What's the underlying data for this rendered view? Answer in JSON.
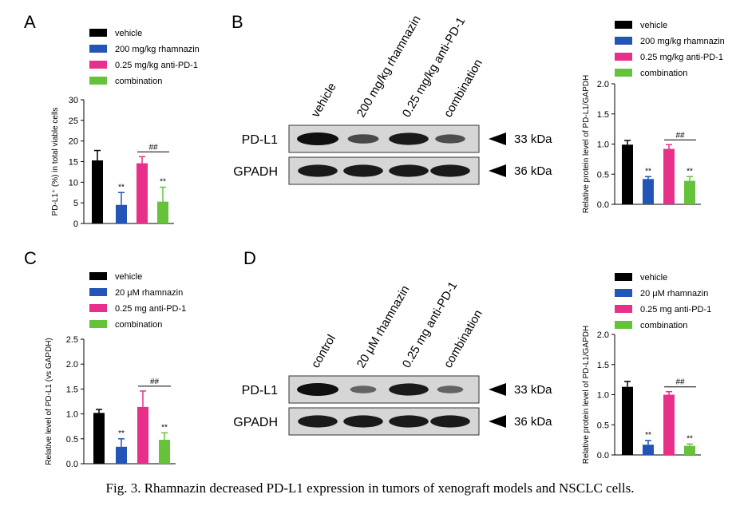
{
  "figure": {
    "caption": "Fig. 3.  Rhamnazin decreased PD-L1 expression in tumors of xenograft models and NSCLC cells."
  },
  "colors": {
    "vehicle": "#000000",
    "rhamnazin": "#2255b5",
    "antipd1": "#e8308a",
    "combination": "#66c23a"
  },
  "blots": [
    {
      "label": "B",
      "lanes": [
        "vehicle",
        "200 mg/kg rhamnazin",
        "0.25 mg/kg anti-PD-1",
        "combination"
      ],
      "rows": [
        {
          "name": "PD-L1",
          "size": "33 kDa",
          "intensities": [
            1.0,
            0.45,
            0.9,
            0.4
          ]
        },
        {
          "name": "GPADH",
          "size": "36 kDa",
          "intensities": [
            0.9,
            0.9,
            0.9,
            0.9
          ]
        }
      ]
    },
    {
      "label": "D",
      "lanes": [
        "control",
        "20 μM rhamnazin",
        "0.25 mg anti-PD-1",
        "combination"
      ],
      "rows": [
        {
          "name": "PD-L1",
          "size": "33 kDa",
          "intensities": [
            1.0,
            0.2,
            0.9,
            0.2
          ]
        },
        {
          "name": "GPADH",
          "size": "36 kDa",
          "intensities": [
            0.9,
            0.9,
            0.9,
            0.9
          ]
        }
      ]
    }
  ],
  "chart_data": [
    {
      "label": "A",
      "type": "bar",
      "legend": [
        "vehicle",
        "200 mg/kg  rhamnazin",
        "0.25 mg/kg anti-PD-1",
        "combination"
      ],
      "ylabel": "PD-L1⁺ (%) in total viable cells",
      "ylim": [
        0,
        30
      ],
      "yticks": [
        "0",
        "5",
        "10",
        "15",
        "20",
        "25",
        "30"
      ],
      "values": [
        15.3,
        4.5,
        14.6,
        5.3
      ],
      "errors": [
        2.4,
        3.0,
        1.6,
        3.5
      ],
      "marks": [
        "",
        "**",
        "",
        "**"
      ],
      "bracket": {
        "from": 2,
        "to": 3,
        "text": "##"
      }
    },
    {
      "label": "B-chart",
      "type": "bar",
      "legend": [
        "vehicle",
        "200 mg/kg  rhamnazin",
        "0.25 mg/kg anti-PD-1",
        "combination"
      ],
      "ylabel": "Relative protein level of  PD-L1/GAPDH",
      "ylim": [
        0,
        2.0
      ],
      "yticks": [
        "0.0",
        "0.5",
        "1.0",
        "1.5",
        "2.0"
      ],
      "values": [
        0.99,
        0.42,
        0.92,
        0.39
      ],
      "errors": [
        0.07,
        0.04,
        0.07,
        0.07
      ],
      "marks": [
        "",
        "**",
        "",
        "**"
      ],
      "bracket": {
        "from": 2,
        "to": 3,
        "text": "##"
      }
    },
    {
      "label": "C",
      "type": "bar",
      "legend": [
        "vehicle",
        "20 μM  rhamnazin",
        "0.25 mg anti-PD-1",
        "combination"
      ],
      "ylabel": "Relative level of PD-L1 (vs GAPDH)",
      "ylim": [
        0,
        2.5
      ],
      "yticks": [
        "0.0",
        "0.5",
        "1.0",
        "1.5",
        "2.0",
        "2.5"
      ],
      "values": [
        1.02,
        0.34,
        1.14,
        0.48
      ],
      "errors": [
        0.07,
        0.16,
        0.32,
        0.14
      ],
      "marks": [
        "",
        "**",
        "",
        "**"
      ],
      "bracket": {
        "from": 2,
        "to": 3,
        "text": "##"
      }
    },
    {
      "label": "D-chart",
      "type": "bar",
      "legend": [
        "vehicle",
        "20 μM  rhamnazin",
        "0.25 mg anti-PD-1",
        "combination"
      ],
      "ylabel": "Relative protein level of  PD-L1/GAPDH",
      "ylim": [
        0,
        2.0
      ],
      "yticks": [
        "0.0",
        "0.5",
        "1.0",
        "1.5",
        "2.0"
      ],
      "values": [
        1.13,
        0.17,
        1.0,
        0.15
      ],
      "errors": [
        0.09,
        0.07,
        0.05,
        0.03
      ],
      "marks": [
        "",
        "**",
        "",
        "**"
      ],
      "bracket": {
        "from": 2,
        "to": 3,
        "text": "##"
      }
    }
  ]
}
